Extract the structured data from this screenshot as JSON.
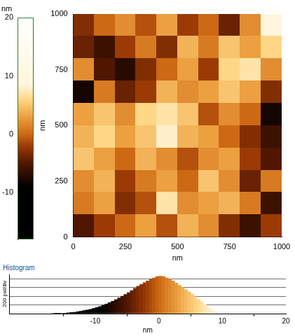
{
  "chart_data": [
    {
      "type": "heatmap",
      "x_label": "nm",
      "y_label": "nm",
      "xlim": [
        0,
        1000
      ],
      "ylim": [
        0,
        1000
      ],
      "xticks": [
        0,
        250,
        500,
        750,
        1000
      ],
      "yticks": [
        0,
        250,
        500,
        750,
        1000
      ],
      "grid": false,
      "x_edges": [
        0,
        100,
        200,
        300,
        400,
        500,
        600,
        700,
        800,
        900,
        1000
      ],
      "y_edges": [
        1000,
        900,
        800,
        700,
        600,
        500,
        400,
        300,
        200,
        100,
        0
      ],
      "z": [
        [
          -3,
          0,
          2,
          -1,
          3,
          -2,
          0,
          -4,
          2,
          9
        ],
        [
          -4,
          -6,
          -2,
          1,
          -3,
          4,
          1,
          5,
          3,
          6
        ],
        [
          2,
          -5,
          -7,
          -3,
          0,
          3,
          -2,
          6,
          7,
          2
        ],
        [
          -8,
          1,
          -4,
          -2,
          4,
          2,
          3,
          5,
          3,
          -3
        ],
        [
          3,
          5,
          2,
          6,
          7,
          5,
          -1,
          2,
          0,
          -8
        ],
        [
          4,
          6,
          3,
          5,
          8,
          4,
          3,
          0,
          -3,
          -6
        ],
        [
          5,
          3,
          0,
          4,
          2,
          -1,
          2,
          3,
          -2,
          -5
        ],
        [
          2,
          4,
          -2,
          1,
          3,
          0,
          5,
          2,
          -4,
          1
        ],
        [
          1,
          3,
          -3,
          -1,
          7,
          2,
          3,
          4,
          1,
          -6
        ],
        [
          -5,
          -2,
          0,
          3,
          -1,
          4,
          2,
          -3,
          -6,
          -2
        ]
      ],
      "colorbar": {
        "label": "nm",
        "range": [
          -18,
          20
        ],
        "ticks": [
          20,
          10,
          0,
          -10
        ]
      }
    },
    {
      "type": "histogram",
      "title": "Histogram",
      "x_label": "nm",
      "y_label": "200 pxl/div",
      "xlim": [
        -23.5,
        20
      ],
      "xticks": [
        -10,
        0,
        10,
        20
      ],
      "ylim": [
        0,
        900
      ],
      "yticks": [
        0,
        200,
        400,
        600,
        800
      ],
      "grid": true,
      "tick_labels": "x",
      "bins": [
        -17,
        -16.5,
        -16,
        -15.5,
        -15,
        -14.5,
        -14,
        -13.5,
        -13,
        -12.5,
        -12,
        -11.5,
        -11,
        -10.5,
        -10,
        -9.5,
        -9,
        -8.5,
        -8,
        -7.5,
        -7,
        -6.5,
        -6,
        -5.5,
        -5,
        -4.5,
        -4,
        -3.5,
        -3,
        -2.5,
        -2,
        -1.5,
        -1,
        -0.5,
        0,
        0.5,
        1,
        1.5,
        2,
        2.5,
        3,
        3.5,
        4,
        4.5,
        5,
        5.5,
        6,
        6.5,
        7,
        7.5,
        8,
        8.5,
        9,
        9.5,
        10,
        10.5,
        11
      ],
      "counts": [
        0,
        2,
        4,
        8,
        12,
        18,
        25,
        32,
        42,
        55,
        70,
        85,
        100,
        120,
        140,
        165,
        190,
        220,
        250,
        285,
        320,
        360,
        400,
        440,
        480,
        530,
        580,
        630,
        670,
        710,
        750,
        790,
        820,
        850,
        860,
        850,
        820,
        790,
        750,
        700,
        650,
        600,
        550,
        500,
        450,
        390,
        330,
        270,
        210,
        160,
        110,
        70,
        40,
        20,
        8,
        2
      ]
    }
  ]
}
